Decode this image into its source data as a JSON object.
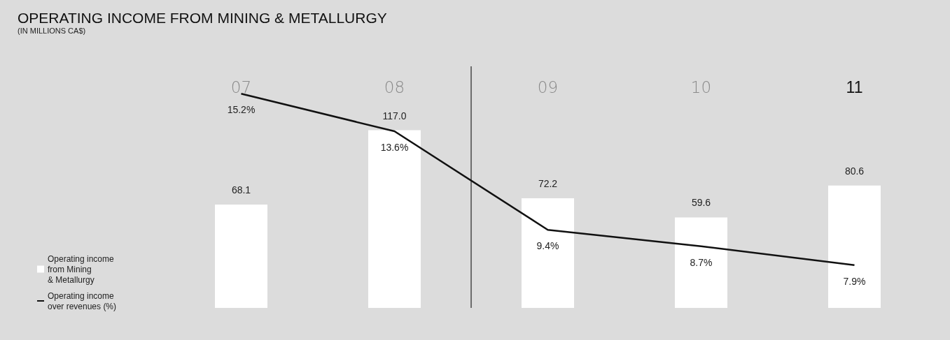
{
  "chart_data": {
    "type": "bar",
    "title": "OPERATING INCOME FROM MINING & METALLURGY",
    "subtitle": "(IN MILLIONS CA$)",
    "categories": [
      "07",
      "08",
      "09",
      "10",
      "11"
    ],
    "series": [
      {
        "name": "Operating income\nfrom Mining\n& Metallurgy",
        "color": "#ffffff",
        "values": [
          68.1,
          117.0,
          72.2,
          59.6,
          80.6
        ],
        "value_labels": [
          "68.1",
          "117.0",
          "72.2",
          "59.6",
          "80.6"
        ]
      },
      {
        "name": "Operating income\nover revenues (%)",
        "type": "line",
        "axis": "y2",
        "color": "#111111",
        "values": [
          15.2,
          13.6,
          9.4,
          8.7,
          7.9
        ],
        "value_labels": [
          "15.2%",
          "13.6%",
          "9.4%",
          "8.7%",
          "7.9%"
        ]
      }
    ],
    "tick_labels": "x",
    "marker": "none",
    "line_style": "solid",
    "grid": false,
    "legend": "bottom left"
  }
}
